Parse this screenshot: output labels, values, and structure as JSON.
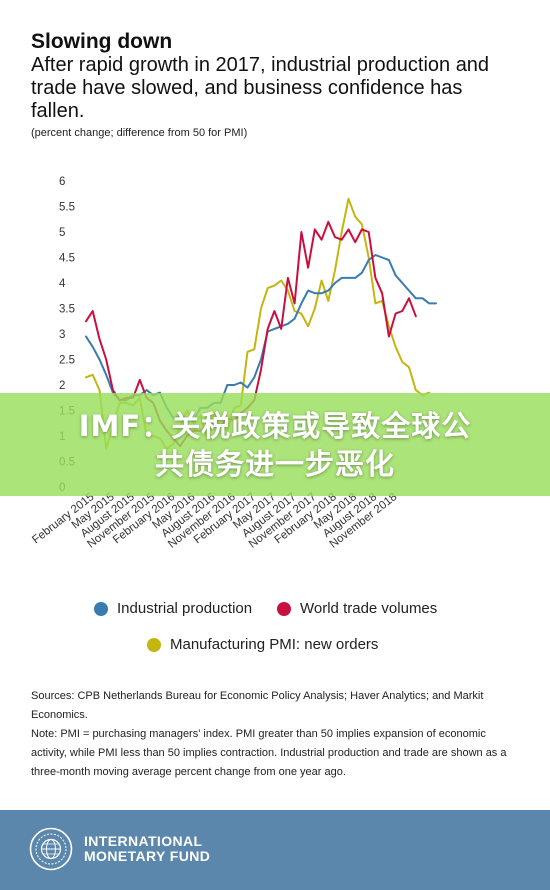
{
  "header": {
    "title": "Slowing down",
    "subtitle": "After rapid growth in 2017, industrial production and trade have slowed, and business confidence has fallen.",
    "units": "(percent change; difference from 50 for PMI)"
  },
  "chart_data": {
    "type": "line",
    "ylim": [
      0,
      6
    ],
    "yticks": [
      "6",
      "5.5",
      "5",
      "4.5",
      "4",
      "3.5",
      "3",
      "2.5",
      "2",
      "1.5",
      "1",
      "0.5",
      "0"
    ],
    "x_tick_labels": [
      "February 2015",
      "May 2015",
      "August 2015",
      "November 2015",
      "February 2016",
      "May 2016",
      "August 2016",
      "November 2016",
      "February 2017",
      "May 2017",
      "August 2017",
      "November 2017",
      "February 2018",
      "May 2018",
      "August 2018",
      "November 2018"
    ],
    "x_start": "2015-01",
    "grid": false,
    "legend_position": "bottom",
    "series": [
      {
        "name": "Industrial production",
        "color": "#3a7bb0",
        "values": [
          2.95,
          2.75,
          2.5,
          2.2,
          1.85,
          1.7,
          1.7,
          1.8,
          1.8,
          1.9,
          1.8,
          1.85,
          1.55,
          1.35,
          1.4,
          1.35,
          1.3,
          1.55,
          1.55,
          1.65,
          1.65,
          2.0,
          2.0,
          2.05,
          1.95,
          2.15,
          2.5,
          3.05,
          3.1,
          3.15,
          3.2,
          3.3,
          3.6,
          3.85,
          3.8,
          3.8,
          3.85,
          4.0,
          4.1,
          4.1,
          4.1,
          4.2,
          4.45,
          4.55,
          4.5,
          4.45,
          4.15,
          4.0,
          3.85,
          3.7,
          3.7,
          3.6,
          3.6
        ]
      },
      {
        "name": "World trade volumes",
        "color": "#c8103e",
        "values": [
          3.25,
          3.45,
          2.9,
          2.5,
          1.9,
          1.7,
          1.75,
          1.75,
          2.1,
          1.75,
          1.65,
          1.3,
          1.1,
          0.95,
          0.8,
          1.0,
          1.1,
          1.1,
          1.2,
          1.25,
          1.2,
          1.35,
          1.3,
          1.45,
          1.55,
          1.7,
          2.3,
          3.1,
          3.45,
          3.1,
          4.1,
          3.6,
          5.0,
          4.3,
          5.05,
          4.85,
          5.2,
          4.9,
          4.85,
          5.05,
          4.8,
          5.05,
          5.0,
          4.1,
          3.8,
          2.95,
          3.4,
          3.45,
          3.7,
          3.35
        ]
      },
      {
        "name": "Manufacturing PMI: new orders",
        "color": "#c3b60f",
        "values": [
          2.15,
          2.2,
          1.9,
          0.75,
          1.2,
          1.65,
          1.65,
          1.6,
          1.75,
          1.0,
          1.0,
          0.95,
          0.75,
          0.85,
          1.2,
          1.5,
          1.25,
          1.4,
          0.95,
          1.45,
          1.2,
          1.1,
          1.55,
          1.6,
          2.65,
          2.7,
          3.5,
          3.9,
          3.95,
          4.05,
          3.85,
          3.45,
          3.4,
          3.15,
          3.5,
          4.05,
          3.65,
          4.25,
          5.0,
          5.65,
          5.3,
          5.15,
          4.5,
          3.6,
          3.65,
          3.15,
          2.75,
          2.45,
          2.35,
          1.9,
          1.8,
          1.85
        ]
      }
    ]
  },
  "legend": [
    {
      "label": "Industrial production",
      "color": "#3a7bb0"
    },
    {
      "label": "World trade volumes",
      "color": "#c8103e"
    },
    {
      "label": "Manufacturing PMI: new orders",
      "color": "#c3b60f"
    }
  ],
  "sources": {
    "source_text": "Sources: CPB Netherlands Bureau for Economic Policy Analysis; Haver Analytics; and Markit Economics.",
    "note_text": "Note: PMI = purchasing managers' index. PMI greater than 50 implies expansion of economic activity, while PMI less than 50 implies contraction. Industrial production and trade are shown as a three-month moving average percent change from one year ago."
  },
  "overlay": {
    "line1": "IMF：关税政策或导致全球公",
    "line2": "共债务进一步恶化"
  },
  "footer": {
    "org_line1": "INTERNATIONAL",
    "org_line2": "MONETARY FUND",
    "bg_color": "#5b87ad"
  }
}
